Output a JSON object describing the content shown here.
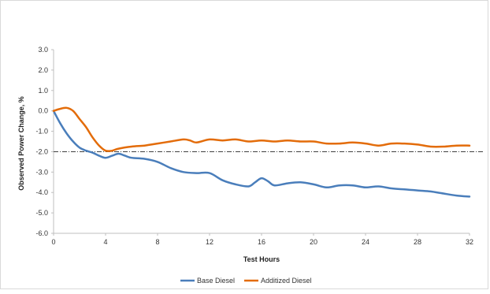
{
  "chart_data": {
    "type": "line",
    "title": "",
    "xlabel": "Test Hours",
    "ylabel": "Observed Power Change, %",
    "xlim": [
      0,
      32
    ],
    "ylim": [
      -6.0,
      3.0
    ],
    "x_ticks": [
      0,
      4,
      8,
      12,
      16,
      20,
      24,
      28,
      32
    ],
    "x_tick_labels": [
      "0",
      "4",
      "8",
      "12",
      "16",
      "20",
      "24",
      "28",
      "32"
    ],
    "y_ticks": [
      3.0,
      2.0,
      1.0,
      0.0,
      -1.0,
      -2.0,
      -3.0,
      -4.0,
      -5.0,
      -6.0
    ],
    "y_tick_labels": [
      "3.0",
      "2.0",
      "1.0",
      "0.0",
      "-1.0",
      "-2.0",
      "-3.0",
      "-4.0",
      "-5.0",
      "-6.0"
    ],
    "grid": false,
    "legend_position": "bottom-center",
    "reference_line": {
      "y": -2.0,
      "style": "dash-dot",
      "color": "#404040"
    },
    "series": [
      {
        "name": "Base Diesel",
        "color": "#4a7ebb",
        "points": [
          [
            0,
            0.0
          ],
          [
            0.5,
            -0.6
          ],
          [
            1,
            -1.1
          ],
          [
            1.5,
            -1.5
          ],
          [
            2,
            -1.8
          ],
          [
            2.5,
            -1.95
          ],
          [
            3,
            -2.05
          ],
          [
            3.5,
            -2.2
          ],
          [
            4,
            -2.3
          ],
          [
            4.5,
            -2.2
          ],
          [
            5,
            -2.1
          ],
          [
            5.5,
            -2.2
          ],
          [
            6,
            -2.3
          ],
          [
            7,
            -2.35
          ],
          [
            8,
            -2.5
          ],
          [
            9,
            -2.8
          ],
          [
            10,
            -3.0
          ],
          [
            11,
            -3.05
          ],
          [
            12,
            -3.05
          ],
          [
            13,
            -3.4
          ],
          [
            14,
            -3.6
          ],
          [
            15,
            -3.7
          ],
          [
            15.5,
            -3.5
          ],
          [
            16,
            -3.3
          ],
          [
            16.5,
            -3.45
          ],
          [
            17,
            -3.65
          ],
          [
            18,
            -3.55
          ],
          [
            19,
            -3.5
          ],
          [
            20,
            -3.6
          ],
          [
            21,
            -3.75
          ],
          [
            22,
            -3.65
          ],
          [
            23,
            -3.65
          ],
          [
            24,
            -3.75
          ],
          [
            25,
            -3.7
          ],
          [
            26,
            -3.8
          ],
          [
            27,
            -3.85
          ],
          [
            28,
            -3.9
          ],
          [
            29,
            -3.95
          ],
          [
            30,
            -4.05
          ],
          [
            31,
            -4.15
          ],
          [
            32,
            -4.2
          ]
        ]
      },
      {
        "name": "Additized Diesel",
        "color": "#e36c0a",
        "points": [
          [
            0,
            0.0
          ],
          [
            0.5,
            0.1
          ],
          [
            1,
            0.15
          ],
          [
            1.5,
            0.0
          ],
          [
            2,
            -0.4
          ],
          [
            2.5,
            -0.8
          ],
          [
            3,
            -1.3
          ],
          [
            3.5,
            -1.7
          ],
          [
            4,
            -1.95
          ],
          [
            4.5,
            -1.95
          ],
          [
            5,
            -1.85
          ],
          [
            6,
            -1.75
          ],
          [
            7,
            -1.7
          ],
          [
            8,
            -1.6
          ],
          [
            9,
            -1.5
          ],
          [
            10,
            -1.4
          ],
          [
            10.5,
            -1.45
          ],
          [
            11,
            -1.55
          ],
          [
            12,
            -1.4
          ],
          [
            13,
            -1.45
          ],
          [
            14,
            -1.4
          ],
          [
            15,
            -1.5
          ],
          [
            16,
            -1.45
          ],
          [
            17,
            -1.5
          ],
          [
            18,
            -1.45
          ],
          [
            19,
            -1.5
          ],
          [
            20,
            -1.5
          ],
          [
            21,
            -1.6
          ],
          [
            22,
            -1.6
          ],
          [
            23,
            -1.55
          ],
          [
            24,
            -1.6
          ],
          [
            25,
            -1.7
          ],
          [
            26,
            -1.6
          ],
          [
            27,
            -1.6
          ],
          [
            28,
            -1.65
          ],
          [
            29,
            -1.75
          ],
          [
            30,
            -1.75
          ],
          [
            31,
            -1.7
          ],
          [
            32,
            -1.7
          ]
        ]
      }
    ]
  }
}
